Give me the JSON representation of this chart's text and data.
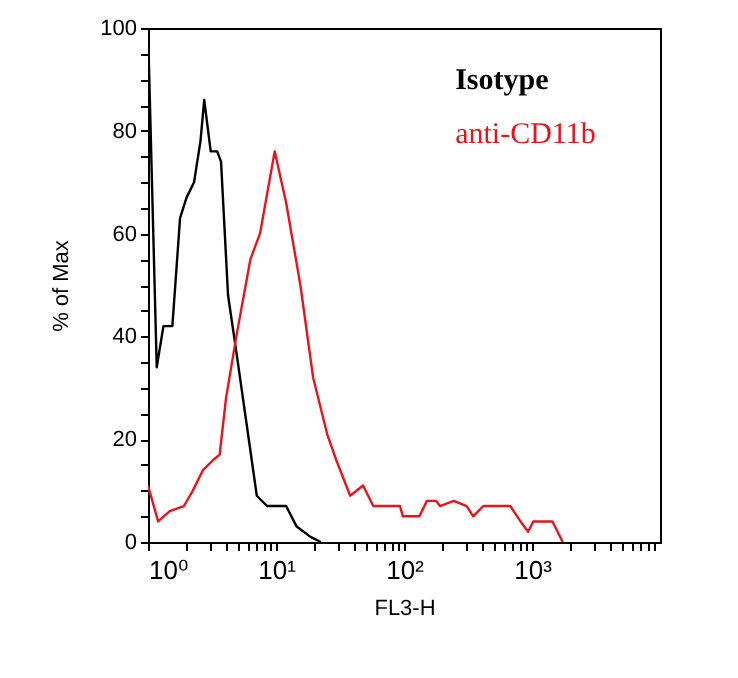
{
  "chart_data": {
    "type": "line",
    "xlabel": "FL3-H",
    "ylabel": "% of Max",
    "log": "x",
    "legend": "top right",
    "grid": false,
    "xlim": [
      1,
      10000
    ],
    "xticks": [
      {
        "value": 1,
        "label": "10⁰"
      },
      {
        "value": 2,
        "label": null
      },
      {
        "value": 3,
        "label": null
      },
      {
        "value": 4,
        "label": null
      },
      {
        "value": 5,
        "label": null
      },
      {
        "value": 6,
        "label": null
      },
      {
        "value": 7,
        "label": null
      },
      {
        "value": 8,
        "label": null
      },
      {
        "value": 9,
        "label": null
      },
      {
        "value": 10,
        "label": "10¹"
      },
      {
        "value": 20,
        "label": null
      },
      {
        "value": 30,
        "label": null
      },
      {
        "value": 40,
        "label": null
      },
      {
        "value": 50,
        "label": null
      },
      {
        "value": 60,
        "label": null
      },
      {
        "value": 70,
        "label": null
      },
      {
        "value": 80,
        "label": null
      },
      {
        "value": 90,
        "label": null
      },
      {
        "value": 100,
        "label": "10²"
      },
      {
        "value": 200,
        "label": null
      },
      {
        "value": 300,
        "label": null
      },
      {
        "value": 400,
        "label": null
      },
      {
        "value": 500,
        "label": null
      },
      {
        "value": 600,
        "label": null
      },
      {
        "value": 700,
        "label": null
      },
      {
        "value": 800,
        "label": null
      },
      {
        "value": 900,
        "label": null
      },
      {
        "value": 1000,
        "label": "10³"
      },
      {
        "value": 2000,
        "label": null
      },
      {
        "value": 3000,
        "label": null
      },
      {
        "value": 4000,
        "label": null
      },
      {
        "value": 5000,
        "label": null
      },
      {
        "value": 6000,
        "label": null
      },
      {
        "value": 7000,
        "label": null
      },
      {
        "value": 8000,
        "label": null
      },
      {
        "value": 9000,
        "label": null
      }
    ],
    "ylim": [
      0,
      100
    ],
    "yticks": [
      0,
      {
        "value": 5,
        "label": null
      },
      {
        "value": 10,
        "label": null
      },
      {
        "value": 15,
        "label": null
      },
      20,
      {
        "value": 25,
        "label": null
      },
      {
        "value": 30,
        "label": null
      },
      {
        "value": 35,
        "label": null
      },
      40,
      {
        "value": 45,
        "label": null
      },
      {
        "value": 50,
        "label": null
      },
      {
        "value": 55,
        "label": null
      },
      60,
      {
        "value": 65,
        "label": null
      },
      {
        "value": 70,
        "label": null
      },
      {
        "value": 75,
        "label": null
      },
      80,
      {
        "value": 85,
        "label": null
      },
      {
        "value": 90,
        "label": null
      },
      {
        "value": 95,
        "label": null
      },
      100
    ],
    "series": [
      {
        "name": "Isotype",
        "color": "#000000",
        "x": [
          1,
          1.17,
          1.32,
          1.55,
          1.78,
          2.0,
          2.29,
          2.57,
          2.75,
          3.09,
          3.47,
          3.72,
          4.22,
          4.9,
          5.89,
          7.08,
          8.51,
          12.0,
          14.5,
          18.6,
          22.4
        ],
        "values": [
          100,
          34,
          42,
          42,
          63,
          67,
          70,
          78,
          86,
          76,
          76,
          74,
          48,
          37,
          23,
          9,
          7,
          7,
          3,
          1,
          0
        ]
      },
      {
        "name": "anti-CD11b",
        "color": "#e8141c",
        "x": [
          1,
          1.2,
          1.48,
          1.91,
          2.24,
          2.69,
          3.24,
          3.63,
          4.07,
          4.9,
          6.31,
          7.5,
          9.77,
          12.0,
          15.5,
          19.5,
          25.1,
          29.5,
          38,
          47.9,
          57.5,
          93,
          98,
          132,
          151,
          178,
          191,
          245,
          309,
          347,
          417,
          676,
          813,
          933,
          1023,
          1445,
          1738
        ],
        "values": [
          11,
          4,
          6,
          7,
          10,
          14,
          16,
          17,
          28,
          40,
          55,
          60,
          76,
          66,
          50,
          32,
          21,
          16,
          9,
          11,
          7,
          7,
          5,
          5,
          8,
          8,
          7,
          8,
          7,
          5,
          7,
          7,
          4,
          2,
          4,
          4,
          0
        ]
      }
    ]
  }
}
